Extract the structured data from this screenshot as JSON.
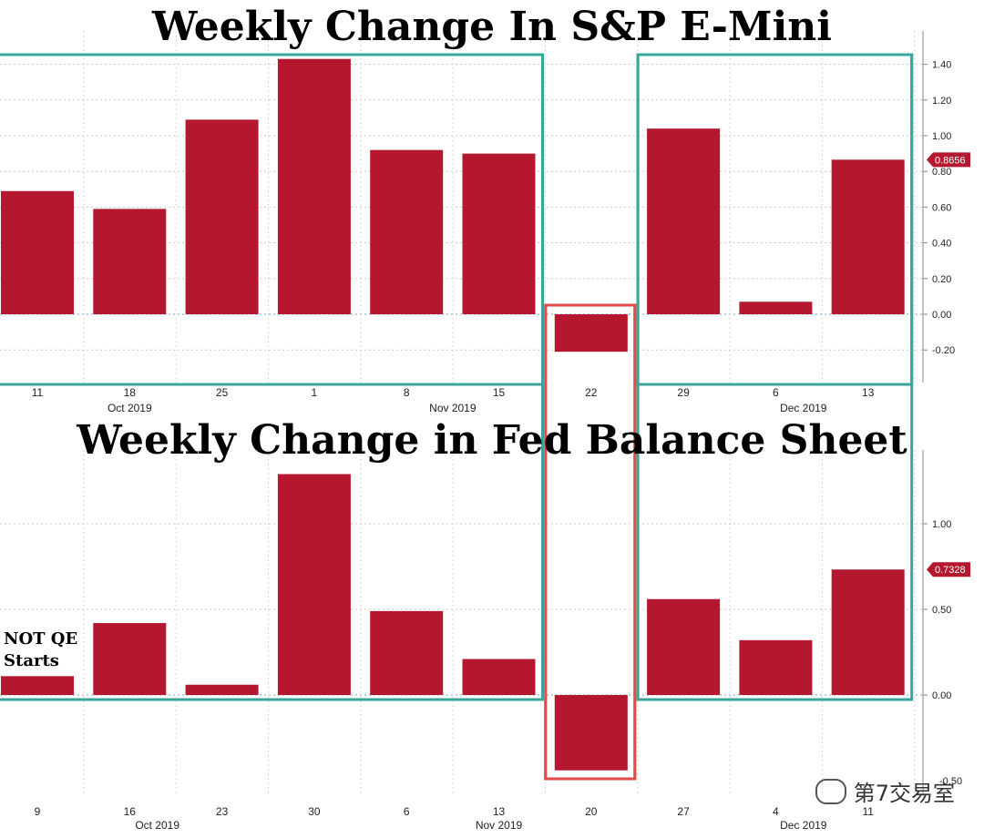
{
  "chart_data": [
    {
      "type": "bar",
      "title": "Weekly Change In S&P E-Mini",
      "categories": [
        "11",
        "18",
        "25",
        "1",
        "8",
        "15",
        "22",
        "29",
        "6",
        "13"
      ],
      "month_labels": [
        {
          "label": "Oct 2019",
          "after_index": 1
        },
        {
          "label": "Nov 2019",
          "after_index": 4.5
        },
        {
          "label": "Dec 2019",
          "after_index": 8.3
        }
      ],
      "values": [
        0.69,
        0.59,
        1.09,
        1.43,
        0.92,
        0.9,
        -0.21,
        1.04,
        0.07,
        0.8656
      ],
      "ylim": [
        -0.4,
        1.55
      ],
      "yticks": [
        -0.2,
        0.0,
        0.2,
        0.4,
        0.6,
        0.8,
        1.0,
        1.2,
        1.4
      ],
      "ytick_labels": [
        "-0.20",
        "0.00",
        "0.20",
        "0.40",
        "0.60",
        "0.80",
        "1.00",
        "1.20",
        "1.40"
      ],
      "last_value_label": "0.8656",
      "grid": true,
      "bar_color": "#b5172f",
      "highlight_boxes": [
        {
          "from_index": 0,
          "to_index": 5,
          "color": "#3aa59a"
        },
        {
          "from_index": 6,
          "to_index": 6,
          "color": "#e34a4a"
        },
        {
          "from_index": 7,
          "to_index": 9,
          "color": "#3aa59a"
        }
      ]
    },
    {
      "type": "bar",
      "title": "Weekly Change in Fed Balance Sheet",
      "categories": [
        "9",
        "16",
        "23",
        "30",
        "6",
        "13",
        "20",
        "27",
        "4",
        "11"
      ],
      "month_labels": [
        {
          "label": "Oct 2019",
          "after_index": 1.3
        },
        {
          "label": "Nov 2019",
          "after_index": 5
        },
        {
          "label": "Dec 2019",
          "after_index": 8.3
        }
      ],
      "values": [
        0.11,
        0.42,
        0.06,
        1.29,
        0.49,
        0.21,
        -0.44,
        0.56,
        0.32,
        0.7328
      ],
      "ylim": [
        -0.5,
        1.45
      ],
      "yticks": [
        0.0,
        0.5,
        1.0
      ],
      "ytick_labels": [
        "0.00",
        "0.50",
        "1.00"
      ],
      "extra_tick_label": "-0.50",
      "last_value_label": "0.7328",
      "grid": true,
      "bar_color": "#b5172f",
      "annotation": "NOT QE Starts",
      "highlight_boxes": [
        {
          "from_index": 0,
          "to_index": 5,
          "color": "#3aa59a"
        },
        {
          "from_index": 6,
          "to_index": 6,
          "color": "#e34a4a"
        },
        {
          "from_index": 7,
          "to_index": 9,
          "color": "#3aa59a"
        }
      ]
    }
  ],
  "annotation_lines": [
    "NOT QE",
    "Starts"
  ],
  "watermark": "第7交易室"
}
